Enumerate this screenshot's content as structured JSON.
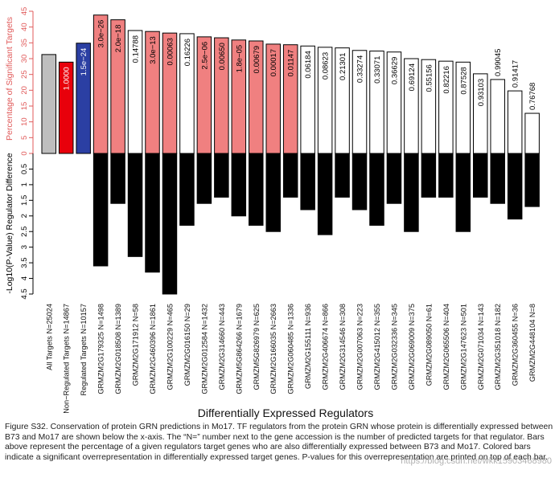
{
  "chart_data": {
    "type": "bar",
    "xlabel": "Differentially Expressed Regulators",
    "upper_panel": {
      "ylabel": "Percentage of Significant Targets",
      "ylim": [
        0,
        45
      ],
      "ticks": [
        "0",
        "5",
        "10",
        "15",
        "20",
        "25",
        "30",
        "35",
        "40",
        "45"
      ]
    },
    "lower_panel": {
      "ylabel": "-Log10(P-Value) Regulator Difference",
      "ylim": [
        0,
        4.5
      ],
      "ticks": [
        "0",
        "0.5",
        "1",
        "1.5",
        "2",
        "2.5",
        "3",
        "3.5",
        "4",
        "4.5"
      ]
    },
    "colors": {
      "gray": "#bebebe",
      "red": "#e8000b",
      "blue": "#2b3fa3",
      "pink": "#f08080",
      "white": "#ffffff",
      "black": "#000000",
      "axis_red": "#e05a5a"
    },
    "categories": [
      {
        "label": "All Targets N=25024",
        "pct": 31.3,
        "diff": null,
        "color": "gray",
        "pval": ""
      },
      {
        "label": "Non−Regulated Targets N=14867",
        "pct": 28.9,
        "diff": null,
        "color": "red",
        "pval": "1.0000"
      },
      {
        "label": "Regulated Targets N=10157",
        "pct": 34.9,
        "diff": null,
        "color": "blue",
        "pval": "1.5e−24"
      },
      {
        "label": "GRMZM2G179325 N=1498",
        "pct": 43.8,
        "diff": 3.6,
        "color": "pink",
        "pval": "3.0e−26"
      },
      {
        "label": "GRMZM2G018508 N=1389",
        "pct": 42.3,
        "diff": 1.6,
        "color": "pink",
        "pval": "2.0e−18"
      },
      {
        "label": "GRMZM2G171912 N=58",
        "pct": 38.9,
        "diff": 3.3,
        "color": "white",
        "pval": "0.14788"
      },
      {
        "label": "GRMZM2G460396 N=1861",
        "pct": 38.6,
        "diff": 3.8,
        "color": "pink",
        "pval": "3.0e−13"
      },
      {
        "label": "GRMZM2G100229 N=465",
        "pct": 38.1,
        "diff": 4.5,
        "color": "pink",
        "pval": "0.00063"
      },
      {
        "label": "GRMZM2G016150 N=29",
        "pct": 37.9,
        "diff": 2.3,
        "color": "white",
        "pval": "0.16226"
      },
      {
        "label": "GRMZM2G012584 N=1432",
        "pct": 36.9,
        "diff": 1.6,
        "color": "pink",
        "pval": "2.5e−06"
      },
      {
        "label": "GRMZM2G314660 N=443",
        "pct": 36.6,
        "diff": 1.4,
        "color": "pink",
        "pval": "0.00650"
      },
      {
        "label": "GRMZM5G864266 N=1679",
        "pct": 35.9,
        "diff": 2.0,
        "color": "pink",
        "pval": "1.8e−05"
      },
      {
        "label": "GRMZM5G826979 N=625",
        "pct": 35.6,
        "diff": 2.3,
        "color": "pink",
        "pval": "0.00679"
      },
      {
        "label": "GRMZM2G166035 N=2663",
        "pct": 34.6,
        "diff": 2.5,
        "color": "pink",
        "pval": "0.00017"
      },
      {
        "label": "GRMZM2G060485 N=1336",
        "pct": 34.4,
        "diff": 1.4,
        "color": "pink",
        "pval": "0.01147"
      },
      {
        "label": "GRMZM2G155111 N=936",
        "pct": 34.0,
        "diff": 1.8,
        "color": "white",
        "pval": "0.06184"
      },
      {
        "label": "GRMZM2G406674 N=866",
        "pct": 33.6,
        "diff": 2.6,
        "color": "white",
        "pval": "0.08623"
      },
      {
        "label": "GRMZM2G314546 N=308",
        "pct": 33.4,
        "diff": 1.4,
        "color": "white",
        "pval": "0.21301"
      },
      {
        "label": "GRMZM2G007063 N=223",
        "pct": 32.6,
        "diff": 1.8,
        "color": "white",
        "pval": "0.33274"
      },
      {
        "label": "GRMZM2G415012 N=355",
        "pct": 32.4,
        "diff": 2.3,
        "color": "white",
        "pval": "0.33071"
      },
      {
        "label": "GRMZM2G032336 N=345",
        "pct": 32.1,
        "diff": 1.6,
        "color": "white",
        "pval": "0.36629"
      },
      {
        "label": "GRMZM2G069009 N=375",
        "pct": 30.0,
        "diff": 2.5,
        "color": "white",
        "pval": "0.69124"
      },
      {
        "label": "GRMZM2G089050 N=61",
        "pct": 29.7,
        "diff": 1.4,
        "color": "white",
        "pval": "0.55156"
      },
      {
        "label": "GRMZM2G065506 N=404",
        "pct": 29.2,
        "diff": 1.4,
        "color": "white",
        "pval": "0.82216"
      },
      {
        "label": "GRMZM2G147623 N=501",
        "pct": 28.9,
        "diff": 2.5,
        "color": "white",
        "pval": "0.87528"
      },
      {
        "label": "GRMZM2G071034 N=143",
        "pct": 25.2,
        "diff": 1.4,
        "color": "white",
        "pval": "0.93103"
      },
      {
        "label": "GRMZM2G351018 N=182",
        "pct": 23.4,
        "diff": 1.6,
        "color": "white",
        "pval": "0.99045"
      },
      {
        "label": "GRMZM2G360455 N=36",
        "pct": 19.8,
        "diff": 2.1,
        "color": "white",
        "pval": "0.91417"
      },
      {
        "label": "GRMZM2G448104 N=8",
        "pct": 12.7,
        "diff": 1.7,
        "color": "white",
        "pval": "0.76768"
      }
    ]
  },
  "caption": "Figure S32. Conservation of protein GRN predictions in Mo17.  TF regulators from the protein GRN whose protein is differentially expressed between B73 and Mo17 are shown below the x-axis. The “N=” number next to the gene accession is the number of predicted targets for that regulator. Bars above represent the percentage of a given regulators target genes who are also differentially expressed between B73 and Mo17. Colored bars indicate a significant overrepresentation in differentially expressed target genes. P-values for this overrepresentation are printed on top of each bar.",
  "watermark": "https://blog.csdn.net/wkk15903468980"
}
